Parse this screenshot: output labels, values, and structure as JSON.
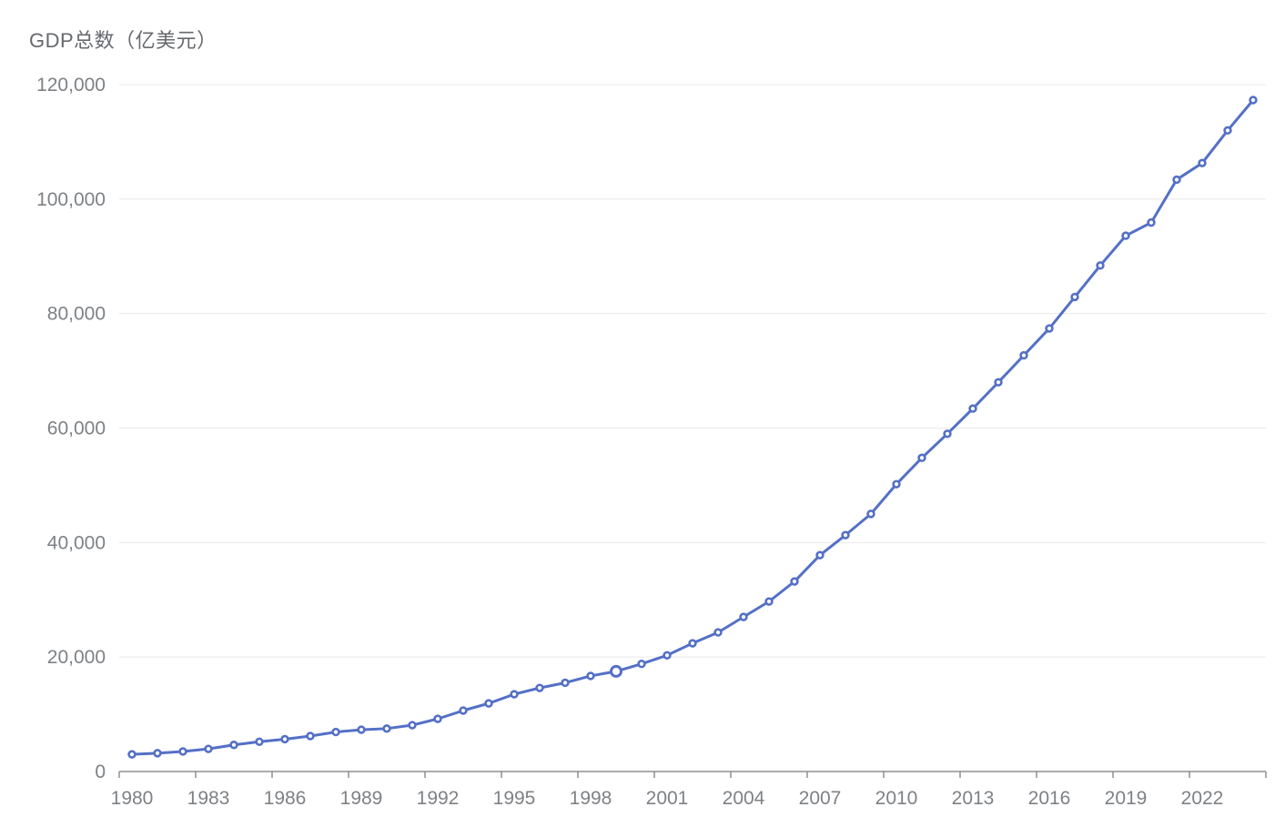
{
  "chart": {
    "title": "GDP总数（亿美元）"
  },
  "chart_data": {
    "type": "line",
    "title": "GDP总数（亿美元）",
    "series_name": "GDP总数",
    "x": [
      1980,
      1981,
      1982,
      1983,
      1984,
      1985,
      1986,
      1987,
      1988,
      1989,
      1990,
      1991,
      1992,
      1993,
      1994,
      1995,
      1996,
      1997,
      1998,
      1999,
      2000,
      2001,
      2002,
      2003,
      2004,
      2005,
      2006,
      2007,
      2008,
      2009,
      2010,
      2011,
      2012,
      2013,
      2014,
      2015,
      2016,
      2017,
      2018,
      2019,
      2020,
      2021,
      2022,
      2023,
      2024
    ],
    "values": [
      3000,
      3200,
      3500,
      3950,
      4650,
      5200,
      5650,
      6200,
      6900,
      7300,
      7500,
      8100,
      9200,
      10650,
      11900,
      13500,
      14600,
      15500,
      16700,
      17500,
      18800,
      20300,
      22400,
      24300,
      27000,
      29700,
      33200,
      37800,
      41300,
      45000,
      50200,
      54800,
      59000,
      63400,
      68000,
      72700,
      77400,
      82900,
      88400,
      93600,
      95900,
      103400,
      106300,
      112000,
      117300
    ],
    "emphasized_x": 1999,
    "marker_style": "open-circle",
    "ylim": [
      0,
      120000
    ],
    "y_axis": {
      "tick_step": 20000,
      "tick_values": [
        0,
        20000,
        40000,
        60000,
        80000,
        100000,
        120000
      ],
      "tick_labels": [
        "0",
        "20,000",
        "40,000",
        "60,000",
        "80,000",
        "100,000",
        "120,000"
      ]
    },
    "x_axis": {
      "label_interval": 3,
      "tick_labels": [
        "1980",
        "1983",
        "1986",
        "1989",
        "1992",
        "1995",
        "1998",
        "2001",
        "2004",
        "2007",
        "2010",
        "2013",
        "2016",
        "2019",
        "2022"
      ]
    },
    "legend_position": "none",
    "grid_horizontal": true,
    "grid_vertical": false,
    "colors": {
      "line": "#5470C6",
      "marker_fill": "#FFFFFF",
      "grid": "#E8E8E8",
      "axis": "#8F8F8F",
      "tick_label": "#7E8185",
      "title": "#67696E"
    }
  }
}
